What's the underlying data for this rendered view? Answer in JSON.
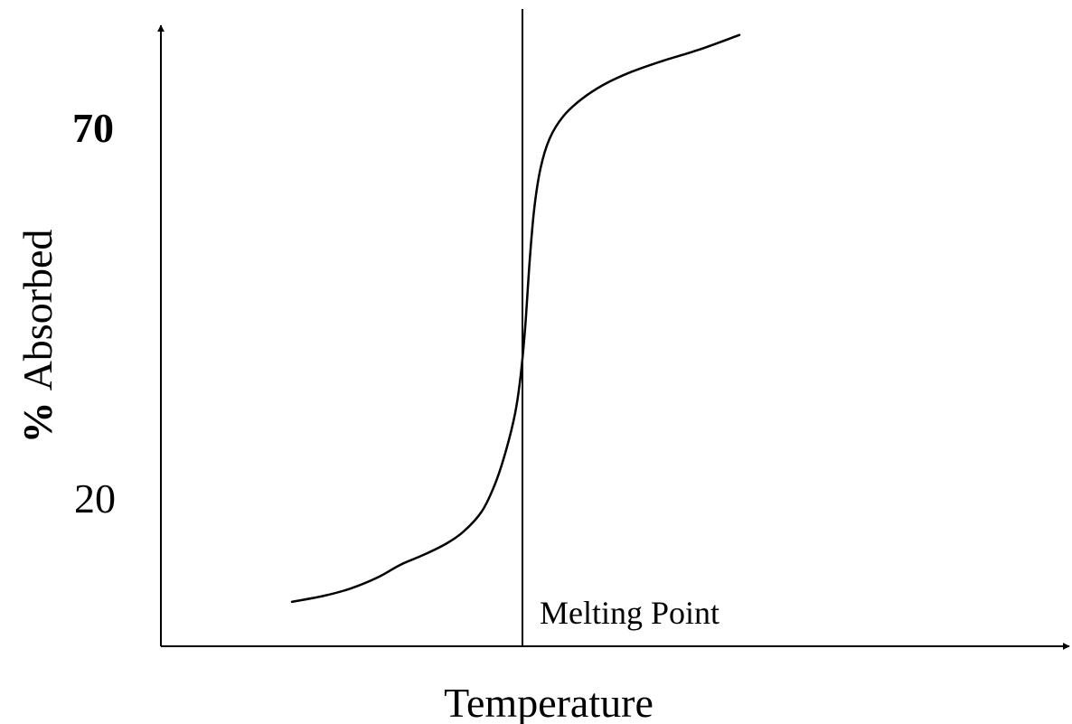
{
  "chart_data": {
    "type": "line",
    "title": "",
    "xlabel": "Temperature",
    "ylabel": "% Absorbed",
    "ylabel_parts": {
      "symbol": "%",
      "text": "Absorbed"
    },
    "y_ticks": [
      {
        "value": 70,
        "label": "70",
        "bold": true
      },
      {
        "value": 20,
        "label": "20",
        "bold": false
      }
    ],
    "xlim": [
      0,
      100
    ],
    "ylim": [
      0,
      86
    ],
    "grid": false,
    "legend": "none",
    "annotations": [
      {
        "type": "vline",
        "x": 40,
        "label": "Melting Point"
      }
    ],
    "series": [
      {
        "color": "#000000",
        "x": [
          14.5,
          18,
          21,
          24,
          26.5,
          29,
          31.5,
          33.5,
          35.5,
          37,
          38.2,
          39.2,
          39.8,
          40.3,
          40.8,
          41.3,
          42,
          43,
          44.5,
          46.5,
          49,
          52,
          55.5,
          59.5,
          64
        ],
        "y": [
          6.0,
          6.8,
          7.8,
          9.3,
          11.0,
          12.3,
          13.8,
          15.5,
          18.2,
          22.0,
          26.5,
          31.5,
          36.5,
          43.0,
          52.0,
          59.0,
          64.5,
          68.5,
          71.5,
          73.8,
          75.8,
          77.5,
          79.0,
          80.5,
          82.5
        ]
      }
    ],
    "colors": {
      "axis": "#000000",
      "line": "#000000",
      "background": "#ffffff"
    }
  }
}
